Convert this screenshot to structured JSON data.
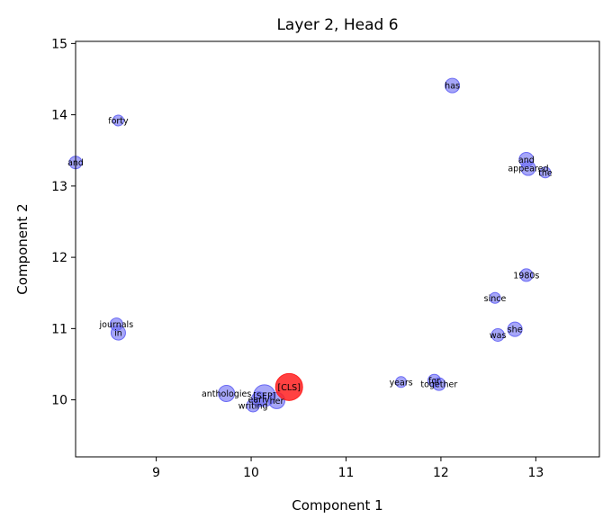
{
  "chart_data": {
    "type": "scatter",
    "title": "Layer 2, Head 6",
    "xlabel": "Component 1",
    "ylabel": "Component 2",
    "xlim": [
      8.15,
      13.67
    ],
    "ylim": [
      9.2,
      15.03
    ],
    "xticks": [
      9,
      10,
      11,
      12,
      13
    ],
    "yticks": [
      10,
      11,
      12,
      13,
      14,
      15
    ],
    "grid": false,
    "colors": {
      "token": "#6a6af4",
      "highlight": "#ff2020"
    },
    "points": [
      {
        "label": "has",
        "x": 12.12,
        "y": 14.41,
        "size": 8
      },
      {
        "label": "forty",
        "x": 8.6,
        "y": 13.92,
        "size": 6
      },
      {
        "label": "and",
        "x": 8.15,
        "y": 13.33,
        "size": 7
      },
      {
        "label": "and",
        "x": 12.9,
        "y": 13.37,
        "size": 8
      },
      {
        "label": "appeared",
        "x": 12.92,
        "y": 13.25,
        "size": 8
      },
      {
        "label": "the",
        "x": 13.1,
        "y": 13.19,
        "size": 6
      },
      {
        "label": "1980s",
        "x": 12.9,
        "y": 11.75,
        "size": 7
      },
      {
        "label": "since",
        "x": 12.57,
        "y": 11.43,
        "size": 6
      },
      {
        "label": "she",
        "x": 12.78,
        "y": 10.99,
        "size": 8
      },
      {
        "label": "was",
        "x": 12.6,
        "y": 10.91,
        "size": 7
      },
      {
        "label": "journals",
        "x": 8.58,
        "y": 11.06,
        "size": 7
      },
      {
        "label": "in",
        "x": 8.6,
        "y": 10.94,
        "size": 8
      },
      {
        "label": "years",
        "x": 11.58,
        "y": 10.25,
        "size": 6
      },
      {
        "label": "for",
        "x": 11.93,
        "y": 10.27,
        "size": 7
      },
      {
        "label": "together",
        "x": 11.98,
        "y": 10.22,
        "size": 7
      },
      {
        "label": "anthologies",
        "x": 9.74,
        "y": 10.09,
        "size": 9
      },
      {
        "label": "[SEP]",
        "x": 10.14,
        "y": 10.06,
        "size": 12
      },
      {
        "label": "early",
        "x": 10.08,
        "y": 10.01,
        "size": 8
      },
      {
        "label": "her",
        "x": 10.27,
        "y": 9.99,
        "size": 9
      },
      {
        "label": "writing",
        "x": 10.02,
        "y": 9.92,
        "size": 7
      },
      {
        "label": "[CLS]",
        "x": 10.4,
        "y": 10.18,
        "size": 15,
        "highlight": true
      }
    ]
  }
}
